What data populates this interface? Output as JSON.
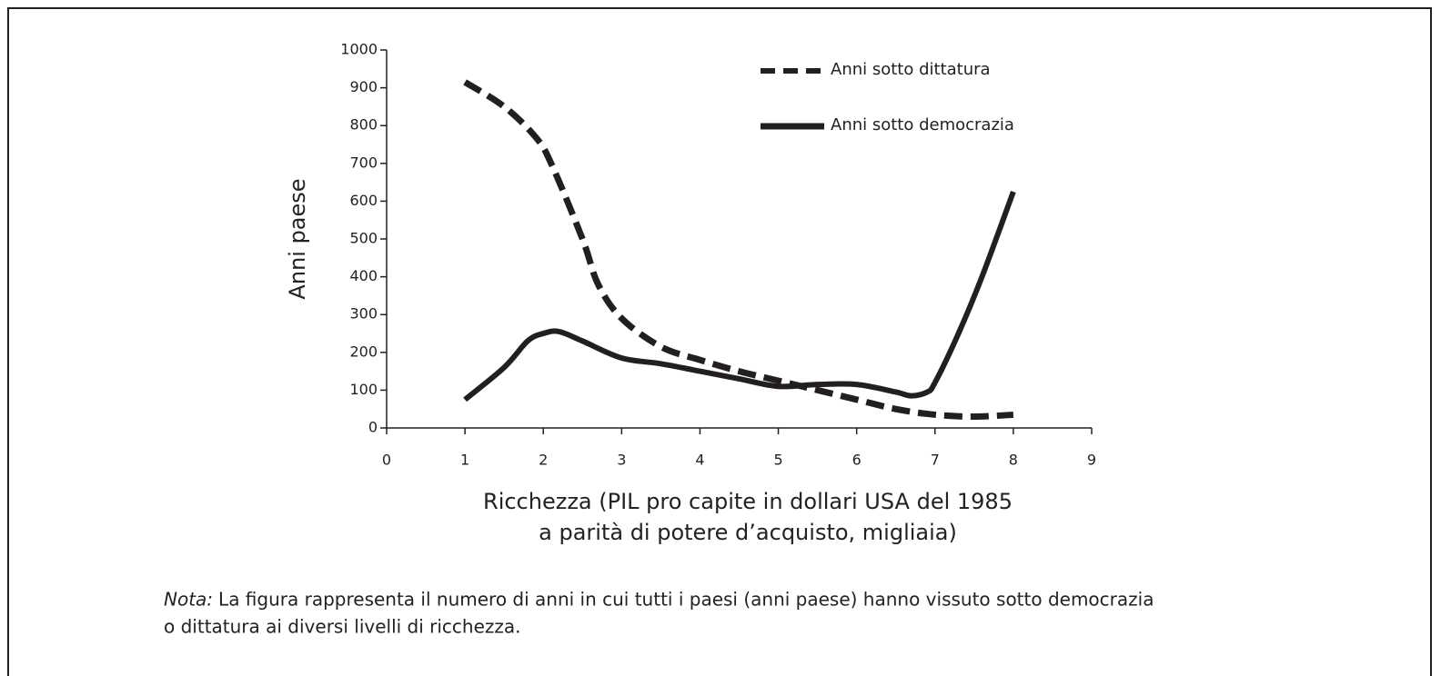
{
  "chart_data": {
    "type": "line",
    "ylabel": "Anni paese",
    "xlabel": [
      "Ricchezza (PIL pro capite in dollari USA del 1985",
      "a parità di potere d’acquisto, migliaia)"
    ],
    "xlim": [
      0,
      9
    ],
    "xticks": [
      0,
      1,
      2,
      3,
      4,
      5,
      6,
      7,
      8,
      9
    ],
    "ylim": [
      0,
      1000
    ],
    "yticks": [
      0,
      100,
      200,
      300,
      400,
      500,
      600,
      700,
      800,
      900,
      1000
    ],
    "series": [
      {
        "name": "Anni sotto dittatura",
        "color": "#231f20",
        "dash": true,
        "x": [
          1,
          1.5,
          1.9,
          2.1,
          2.5,
          2.7,
          3,
          3.5,
          4,
          4.5,
          5,
          5.5,
          6,
          6.5,
          7,
          7.5,
          8
        ],
        "values": [
          915,
          850,
          770,
          700,
          500,
          380,
          290,
          215,
          180,
          150,
          125,
          100,
          75,
          50,
          35,
          30,
          35
        ]
      },
      {
        "name": "Anni sotto democrazia",
        "color": "#231f20",
        "dash": false,
        "x": [
          1,
          1.5,
          1.8,
          2,
          2.2,
          2.5,
          3,
          3.5,
          4,
          4.5,
          5,
          5.5,
          6,
          6.5,
          6.7,
          6.9,
          7,
          7.3,
          7.6,
          8
        ],
        "values": [
          75,
          160,
          230,
          250,
          255,
          230,
          185,
          170,
          150,
          130,
          110,
          115,
          115,
          95,
          85,
          95,
          120,
          250,
          400,
          625
        ]
      }
    ],
    "note": {
      "label": "Nota:",
      "lines": [
        "La figura rappresenta il numero di anni in cui tutti i paesi (anni paese) hanno vissuto sotto democrazia",
        "o dittatura ai diversi livelli di ricchezza."
      ]
    }
  }
}
